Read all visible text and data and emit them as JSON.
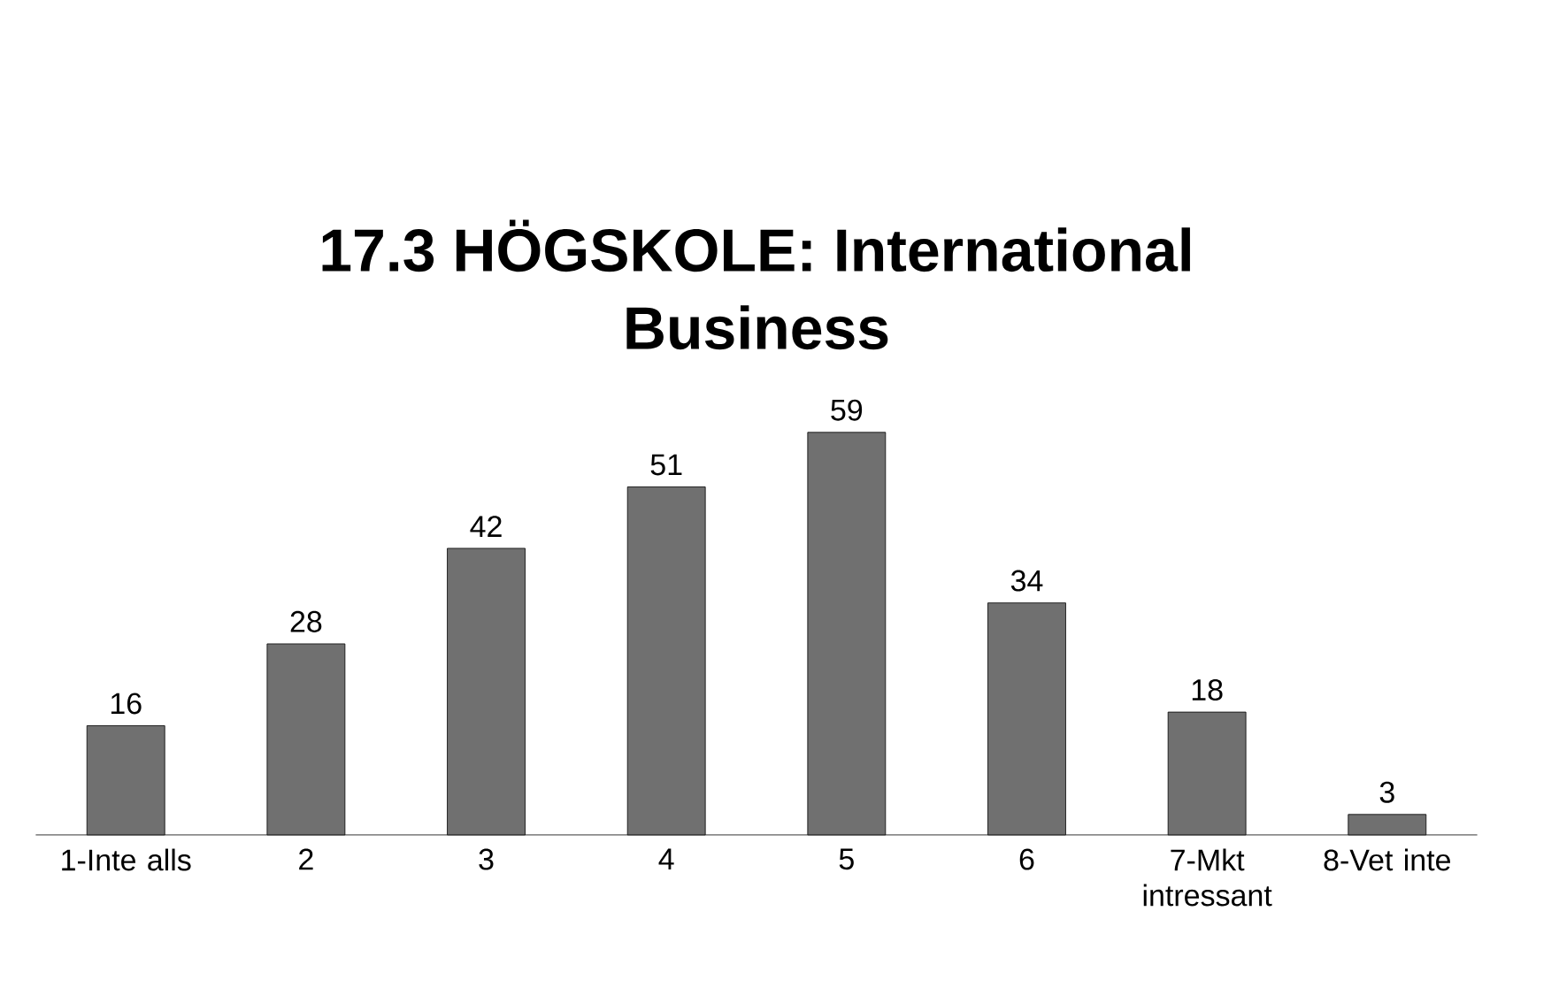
{
  "chart_data": {
    "type": "bar",
    "title": "17.3 HÖGSKOLE: International Business",
    "categories": [
      "1-Inte alls",
      "2",
      "3",
      "4",
      "5",
      "6",
      "7-Mkt intressant",
      "8-Vet inte"
    ],
    "values": [
      16,
      28,
      42,
      51,
      59,
      34,
      18,
      3
    ],
    "color": "#707070",
    "data_labels": true
  }
}
